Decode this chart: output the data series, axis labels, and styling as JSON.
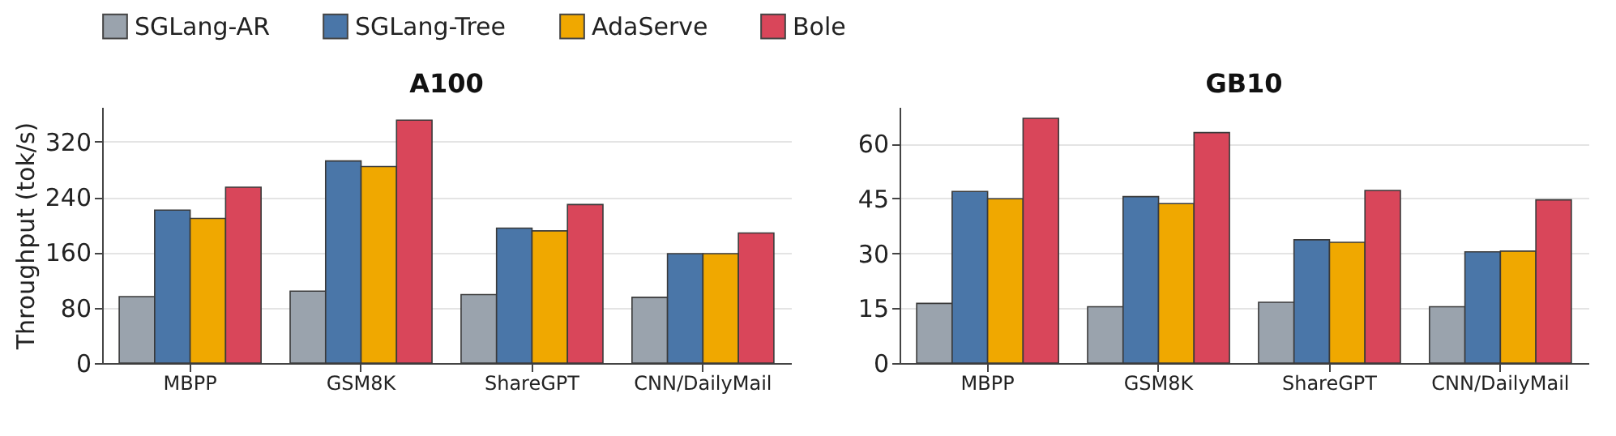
{
  "chart_data": [
    {
      "type": "bar",
      "title": "A100",
      "ylabel": "Throughput (tok/s)",
      "categories": [
        "MBPP",
        "GSM8K",
        "ShareGPT",
        "CNN/DailyMail"
      ],
      "series": [
        {
          "name": "SGLang-AR",
          "color": "#9aa3ad",
          "values": [
            96,
            104,
            99,
            95
          ]
        },
        {
          "name": "SGLang-Tree",
          "color": "#4a76a8",
          "values": [
            221,
            292,
            195,
            158
          ]
        },
        {
          "name": "AdaServe",
          "color": "#f0a800",
          "values": [
            209,
            284,
            191,
            158
          ]
        },
        {
          "name": "Bole",
          "color": "#d9465a",
          "values": [
            254,
            351,
            229,
            188
          ]
        }
      ],
      "ylim": [
        0,
        370
      ],
      "yticks": [
        0,
        80,
        160,
        240,
        320
      ],
      "grid": "y",
      "legend": "top"
    },
    {
      "type": "bar",
      "title": "GB10",
      "categories": [
        "MBPP",
        "GSM8K",
        "ShareGPT",
        "CNN/DailyMail"
      ],
      "series": [
        {
          "name": "SGLang-AR",
          "color": "#9aa3ad",
          "values": [
            16.3,
            15.4,
            16.6,
            15.4
          ]
        },
        {
          "name": "SGLang-Tree",
          "color": "#4a76a8",
          "values": [
            46.9,
            45.5,
            33.7,
            30.4
          ]
        },
        {
          "name": "AdaServe",
          "color": "#f0a800",
          "values": [
            44.9,
            43.6,
            33.0,
            30.6
          ]
        },
        {
          "name": "Bole",
          "color": "#d9465a",
          "values": [
            66.9,
            63.0,
            47.2,
            44.6
          ]
        }
      ],
      "ylim": [
        0,
        70
      ],
      "yticks": [
        0,
        15,
        30,
        45,
        60
      ],
      "grid": "y",
      "legend": "top"
    }
  ]
}
